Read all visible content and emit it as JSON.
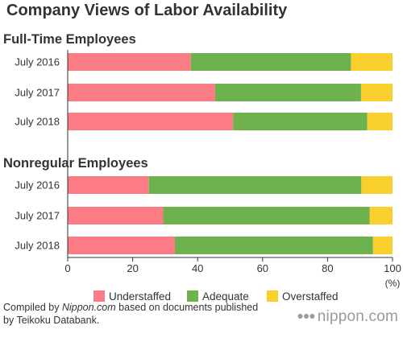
{
  "title": "Company Views of Labor Availability",
  "colors": {
    "understaffed": "#fb7c84",
    "adequate": "#6db24d",
    "overstaffed": "#f8cf2d",
    "text": "#333333",
    "axis": "#333333"
  },
  "chart_data": {
    "type": "bar",
    "orientation": "horizontal",
    "stacked": true,
    "xlabel": "(%)",
    "xlim": [
      0,
      100
    ],
    "xticks": [
      0,
      20,
      40,
      60,
      80,
      100
    ],
    "grid": false,
    "legend_position": "bottom",
    "series_names": [
      "Understaffed",
      "Adequate",
      "Overstaffed"
    ],
    "panels": [
      {
        "title": "Full-Time Employees",
        "categories": [
          "July 2016",
          "July 2017",
          "July 2018"
        ],
        "series": [
          {
            "name": "Understaffed",
            "values": [
              37.9,
              45.4,
              50.9
            ]
          },
          {
            "name": "Adequate",
            "values": [
              49.3,
              44.9,
              41.3
            ]
          },
          {
            "name": "Overstaffed",
            "values": [
              12.8,
              9.7,
              7.8
            ]
          }
        ]
      },
      {
        "title": "Nonregular Employees",
        "categories": [
          "July 2016",
          "July 2017",
          "July 2018"
        ],
        "series": [
          {
            "name": "Understaffed",
            "values": [
              25.0,
              29.4,
              33.0
            ]
          },
          {
            "name": "Adequate",
            "values": [
              65.4,
              63.6,
              61.0
            ]
          },
          {
            "name": "Overstaffed",
            "values": [
              9.6,
              7.0,
              6.0
            ]
          }
        ]
      }
    ]
  },
  "footer": {
    "prefix": "Compiled by ",
    "source": "Nippon.com",
    "suffix": " based on documents published",
    "line2": "by Teikoku Databank."
  },
  "logo": {
    "dots": "●●●",
    "text": "nippon.com"
  }
}
